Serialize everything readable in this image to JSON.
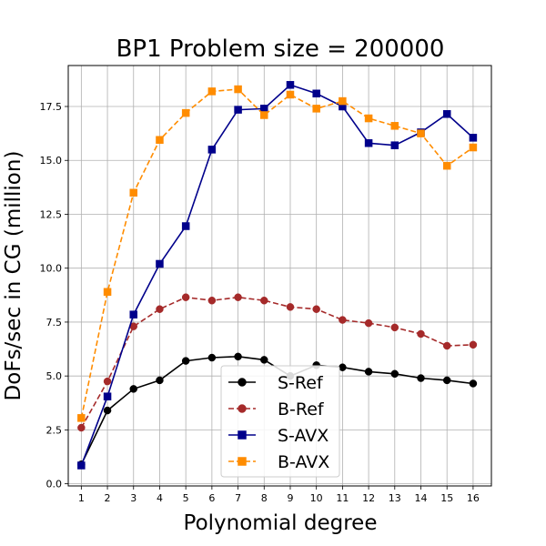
{
  "chart_data": {
    "type": "line",
    "title": "BP1 Problem size = 200000",
    "xlabel": "Polynomial degree",
    "ylabel": "DoFs/sec in CG (million)",
    "x": [
      1,
      2,
      3,
      4,
      5,
      6,
      7,
      8,
      9,
      10,
      11,
      12,
      13,
      14,
      15,
      16
    ],
    "xlim": [
      0.5,
      16.7
    ],
    "ylim": [
      -0.1,
      19.4
    ],
    "x_ticks": [
      "1",
      "2",
      "3",
      "4",
      "5",
      "6",
      "7",
      "8",
      "9",
      "10",
      "11",
      "12",
      "13",
      "14",
      "15",
      "16"
    ],
    "y_ticks": [
      {
        "value": 0.0,
        "label": "0.0"
      },
      {
        "value": 2.5,
        "label": "2.5"
      },
      {
        "value": 5.0,
        "label": "5.0"
      },
      {
        "value": 7.5,
        "label": "7.5"
      },
      {
        "value": 10.0,
        "label": "10.0"
      },
      {
        "value": 12.5,
        "label": "12.5"
      },
      {
        "value": 15.0,
        "label": "15.0"
      },
      {
        "value": 17.5,
        "label": "17.5"
      }
    ],
    "grid": true,
    "legend_position": "lower-center",
    "series": [
      {
        "name": "S-Ref",
        "color": "#000000",
        "dash": "solid",
        "marker": "circle",
        "values": [
          0.9,
          3.4,
          4.4,
          4.8,
          5.7,
          5.85,
          5.9,
          5.75,
          5.0,
          5.5,
          5.4,
          5.2,
          5.1,
          4.9,
          4.8,
          4.65
        ]
      },
      {
        "name": "B-Ref",
        "color": "#a52a2a",
        "dash": "dashed",
        "marker": "circle",
        "values": [
          2.6,
          4.75,
          7.3,
          8.1,
          8.65,
          8.5,
          8.65,
          8.5,
          8.2,
          8.1,
          7.6,
          7.45,
          7.25,
          6.95,
          6.4,
          6.45
        ]
      },
      {
        "name": "S-AVX",
        "color": "#00008b",
        "dash": "solid",
        "marker": "square",
        "values": [
          0.85,
          4.05,
          7.85,
          10.2,
          11.95,
          15.5,
          17.35,
          17.4,
          18.5,
          18.1,
          17.5,
          15.8,
          15.7,
          16.3,
          17.15,
          16.05
        ]
      },
      {
        "name": "B-AVX",
        "color": "#ff8c00",
        "dash": "dashed",
        "marker": "square",
        "values": [
          3.05,
          8.9,
          13.5,
          15.95,
          17.2,
          18.2,
          18.3,
          17.1,
          18.05,
          17.4,
          17.75,
          16.95,
          16.6,
          16.25,
          14.75,
          15.6
        ]
      }
    ]
  }
}
